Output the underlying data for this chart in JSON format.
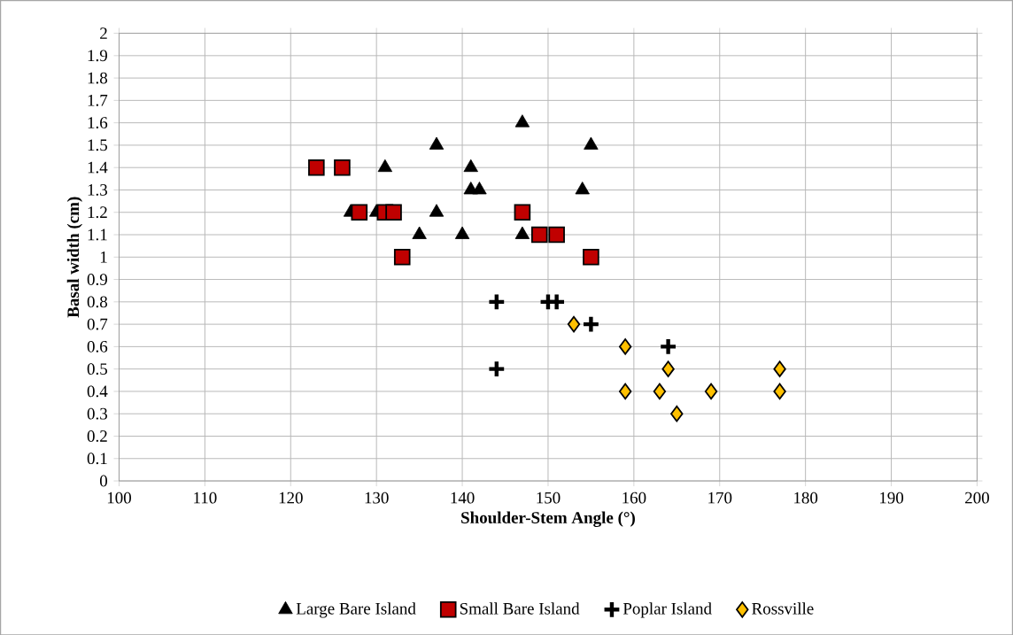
{
  "chart_data": {
    "type": "scatter",
    "xlabel": "Shoulder-Stem Angle (°)",
    "ylabel": "Basal width (cm)",
    "xlim": [
      100,
      200
    ],
    "xticks": [
      100,
      110,
      120,
      130,
      140,
      150,
      160,
      170,
      180,
      190,
      200
    ],
    "ylim": [
      0,
      2
    ],
    "yticks": [
      0,
      0.1,
      0.2,
      0.3,
      0.4,
      0.5,
      0.6,
      0.7,
      0.8,
      0.9,
      1,
      1.1,
      1.2,
      1.3,
      1.4,
      1.5,
      1.6,
      1.7,
      1.8,
      1.9,
      2
    ],
    "grid": true,
    "legend": "bottom",
    "series": [
      {
        "name": "Large Bare Island",
        "color": "#000000",
        "marker": "triangle",
        "x": [
          127,
          130,
          131,
          135,
          137,
          137,
          140,
          141,
          141,
          142,
          147,
          147,
          154,
          155
        ],
        "values": [
          1.2,
          1.2,
          1.4,
          1.1,
          1.5,
          1.2,
          1.1,
          1.4,
          1.3,
          1.3,
          1.6,
          1.1,
          1.3,
          1.5
        ]
      },
      {
        "name": "Small Bare Island",
        "color": "#c00000",
        "marker": "square",
        "x": [
          123,
          126,
          128,
          131,
          132,
          133,
          147,
          149,
          151,
          155
        ],
        "values": [
          1.4,
          1.4,
          1.2,
          1.2,
          1.2,
          1.0,
          1.2,
          1.1,
          1.1,
          1.0
        ]
      },
      {
        "name": "Poplar Island",
        "color": "#000000",
        "marker": "cross",
        "x": [
          144,
          150,
          151,
          155,
          164,
          144
        ],
        "values": [
          0.8,
          0.8,
          0.8,
          0.7,
          0.6,
          0.5
        ]
      },
      {
        "name": "Rossville",
        "color": "#ffc000",
        "marker": "diamond",
        "x": [
          153,
          159,
          159,
          163,
          164,
          165,
          169,
          177,
          177
        ],
        "values": [
          0.7,
          0.6,
          0.4,
          0.4,
          0.5,
          0.3,
          0.4,
          0.5,
          0.4
        ]
      }
    ]
  }
}
